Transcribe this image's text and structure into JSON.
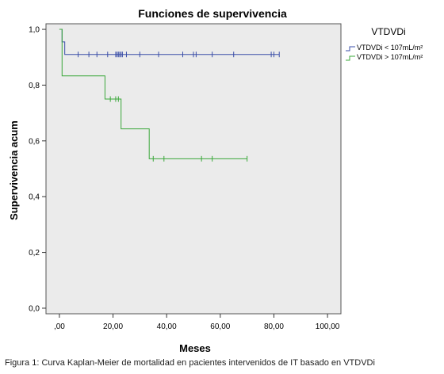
{
  "chart_data": {
    "type": "line",
    "title": "Funciones de supervivencia",
    "xlabel": "Meses",
    "ylabel": "Supervivencia acum",
    "xlim": [
      -5,
      105
    ],
    "ylim": [
      -0.02,
      1.02
    ],
    "x_ticks": [
      0,
      20,
      40,
      60,
      80,
      100
    ],
    "x_tick_labels": [
      ",00",
      "20,00",
      "40,00",
      "60,00",
      "80,00",
      "100,00"
    ],
    "y_ticks": [
      0,
      0.2,
      0.4,
      0.6,
      0.8,
      1.0
    ],
    "y_tick_labels": [
      "0,0",
      "0,2",
      "0,4",
      "0,6",
      "0,8",
      "1,0"
    ],
    "grid": false,
    "legend_title": "VTDVDi",
    "legend_position": "right",
    "series": [
      {
        "name": "VTDVDi < 107mL/m²",
        "color": "#3a4ea8",
        "steps": [
          [
            0,
            1.0
          ],
          [
            1,
            0.955
          ],
          [
            2,
            0.91
          ],
          [
            82,
            0.91
          ]
        ],
        "censored": [
          7,
          11,
          14,
          18,
          21,
          21.5,
          22,
          22.5,
          23,
          23.5,
          25,
          30,
          37,
          46,
          50,
          51,
          57,
          65,
          79,
          80,
          82
        ]
      },
      {
        "name": "VTDVDi > 107mL/m²",
        "color": "#3aa83a",
        "steps": [
          [
            0,
            1.0
          ],
          [
            1,
            0.833
          ],
          [
            17,
            0.75
          ],
          [
            23,
            0.643
          ],
          [
            33.5,
            0.536
          ],
          [
            70,
            0.536
          ]
        ],
        "censored": [
          19,
          21,
          22,
          35,
          39,
          53,
          57,
          70
        ]
      }
    ]
  },
  "caption": "Figura 1: Curva Kaplan-Meier de mortalidad en pacientes intervenidos de IT basado en VTDVDi"
}
